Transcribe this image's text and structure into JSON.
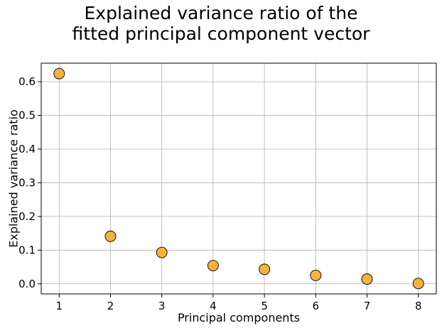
{
  "chart_data": {
    "type": "scatter",
    "title_lines": [
      "Explained variance ratio of the",
      "fitted principal component vector"
    ],
    "xlabel": "Principal components",
    "ylabel": "Explained variance ratio",
    "x": [
      1,
      2,
      3,
      4,
      5,
      6,
      7,
      8
    ],
    "y": [
      0.624,
      0.141,
      0.093,
      0.054,
      0.043,
      0.025,
      0.014,
      0.001
    ],
    "xlim": [
      0.65,
      8.35
    ],
    "ylim": [
      -0.03,
      0.655
    ],
    "xticks": [
      "1",
      "2",
      "3",
      "4",
      "5",
      "6",
      "7",
      "8"
    ],
    "yticks": [
      "0.0",
      "0.1",
      "0.2",
      "0.3",
      "0.4",
      "0.5",
      "0.6"
    ],
    "grid": true,
    "legend": "none",
    "marker_color": "#f7b23b",
    "marker_edge": "#000000",
    "grid_color": "#b0b0b0"
  }
}
